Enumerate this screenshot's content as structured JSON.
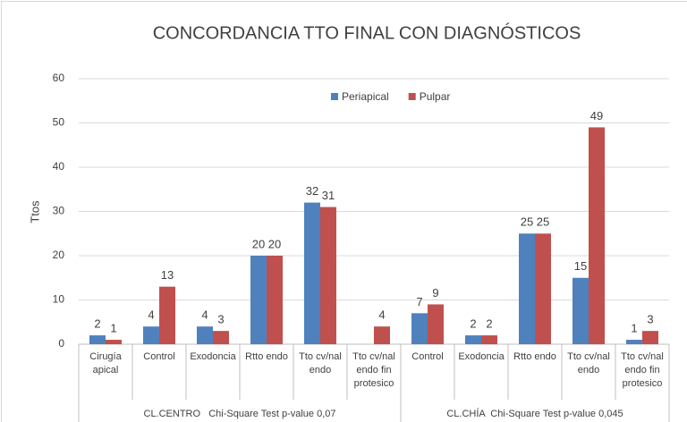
{
  "chart_data": {
    "type": "bar",
    "title": "CONCORDANCIA TTO FINAL  CON DIAGNÓSTICOS",
    "y_label": "Ttos",
    "groups": [
      {
        "name": "CL.CENTRO   Chi-Square Test p-value 0,07",
        "categories": [
          "Cirugía apical",
          "Control",
          "Exodoncia",
          "Rtto endo",
          "Tto cv/nal endo",
          "Tto cv/nal endo fin protesico"
        ]
      },
      {
        "name": "CL.CHÍA  Chi-Square Test p-value 0,045",
        "categories": [
          "Control",
          "Exodoncia",
          "Rtto endo",
          "Tto cv/nal endo",
          "Tto cv/nal endo fin protesico"
        ]
      }
    ],
    "series": [
      {
        "name": "Periapical",
        "color": "#4f81bd",
        "values": [
          2,
          4,
          4,
          20,
          32,
          null,
          7,
          2,
          25,
          15,
          1
        ]
      },
      {
        "name": "Pulpar",
        "color": "#c0504d",
        "values": [
          1,
          13,
          3,
          20,
          31,
          4,
          9,
          2,
          25,
          49,
          3
        ]
      }
    ],
    "ylim": [
      0,
      60
    ],
    "yticks": [
      0,
      10,
      20,
      30,
      40,
      50,
      60
    ],
    "grid": true,
    "legend": "top"
  }
}
